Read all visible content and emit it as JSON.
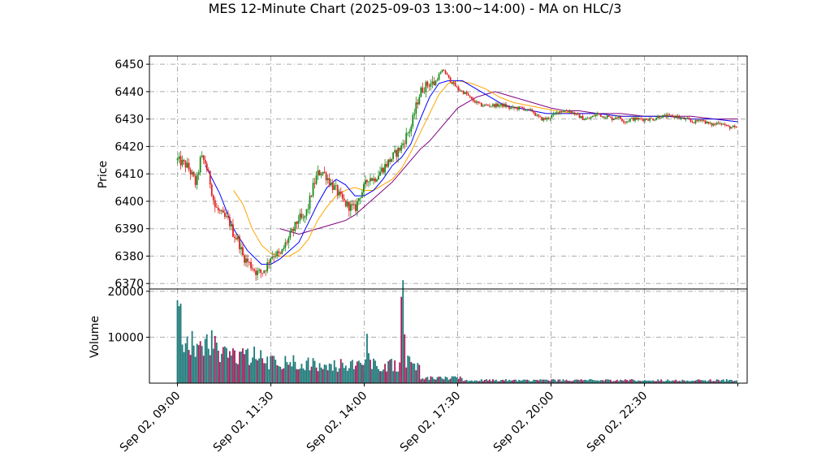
{
  "chart_data": {
    "type": "candlestick",
    "title": "MES 12-Minute Chart (2025-09-03 13:00~14:00) - MA on HLC/3",
    "price_panel": {
      "ylabel": "Price",
      "ylim": [
        6368,
        6453
      ],
      "yticks": [
        6370,
        6380,
        6390,
        6400,
        6410,
        6420,
        6430,
        6440,
        6450
      ],
      "grid": true
    },
    "volume_panel": {
      "ylabel": "Volume",
      "ylim": [
        0,
        20500
      ],
      "yticks": [
        10000,
        20000
      ],
      "grid": true
    },
    "x_axis": {
      "index_range": [
        -6,
        122
      ],
      "ticks": [
        {
          "index": 0,
          "label": "Sep 02, 09:00"
        },
        {
          "index": 20,
          "label": "Sep 02, 11:30"
        },
        {
          "index": 40,
          "label": "Sep 02, 14:00"
        },
        {
          "index": 60,
          "label": "Sep 02, 17:30"
        },
        {
          "index": 80,
          "label": "Sep 02, 20:00"
        },
        {
          "index": 100,
          "label": "Sep 02, 22:30"
        },
        {
          "index": 120,
          "label": ""
        }
      ]
    },
    "colors": {
      "up_candle": "#1a8a1a",
      "down_candle": "#e02020",
      "volume_a": "#1f7a7a",
      "volume_b": "#a0205a",
      "ma_fast": "#0000ff",
      "ma_mid": "#ffa500",
      "ma_slow": "#800080",
      "grid": "#aaaaaa"
    },
    "close_path": [
      [
        0,
        6415
      ],
      [
        1,
        6414
      ],
      [
        2,
        6413
      ],
      [
        3,
        6410
      ],
      [
        4,
        6406
      ],
      [
        5,
        6416
      ],
      [
        6,
        6414
      ],
      [
        7,
        6407
      ],
      [
        8,
        6398
      ],
      [
        9,
        6396
      ],
      [
        10,
        6394
      ],
      [
        11,
        6393
      ],
      [
        12,
        6388
      ],
      [
        13,
        6386
      ],
      [
        14,
        6380
      ],
      [
        15,
        6378
      ],
      [
        16,
        6376
      ],
      [
        17,
        6374
      ],
      [
        18,
        6374
      ],
      [
        19,
        6376
      ],
      [
        20,
        6380
      ],
      [
        21,
        6381
      ],
      [
        22,
        6380
      ],
      [
        23,
        6384
      ],
      [
        24,
        6387
      ],
      [
        25,
        6390
      ],
      [
        26,
        6394
      ],
      [
        27,
        6393
      ],
      [
        28,
        6398
      ],
      [
        29,
        6405
      ],
      [
        30,
        6410
      ],
      [
        31,
        6411
      ],
      [
        32,
        6409
      ],
      [
        33,
        6406
      ],
      [
        34,
        6404
      ],
      [
        35,
        6401
      ],
      [
        36,
        6399
      ],
      [
        37,
        6398
      ],
      [
        38,
        6397
      ],
      [
        39,
        6402
      ],
      [
        40,
        6405
      ],
      [
        41,
        6409
      ],
      [
        42,
        6408
      ],
      [
        43,
        6410
      ],
      [
        44,
        6412
      ],
      [
        45,
        6414
      ],
      [
        46,
        6416
      ],
      [
        47,
        6418
      ],
      [
        48,
        6420
      ],
      [
        49,
        6424
      ],
      [
        50,
        6427
      ],
      [
        51,
        6434
      ],
      [
        52,
        6440
      ],
      [
        53,
        6442
      ],
      [
        54,
        6443
      ],
      [
        55,
        6443
      ],
      [
        56,
        6446
      ],
      [
        57,
        6448
      ],
      [
        58,
        6445
      ],
      [
        59,
        6443
      ],
      [
        60,
        6441
      ],
      [
        61,
        6440
      ],
      [
        62,
        6439
      ],
      [
        63,
        6437
      ],
      [
        64,
        6436
      ],
      [
        65,
        6435
      ],
      [
        66,
        6435
      ],
      [
        67,
        6435
      ],
      [
        68,
        6435
      ],
      [
        69,
        6435
      ],
      [
        70,
        6435
      ],
      [
        71,
        6434
      ],
      [
        72,
        6434
      ],
      [
        73,
        6434
      ],
      [
        74,
        6434
      ],
      [
        75,
        6433
      ],
      [
        76,
        6433
      ],
      [
        77,
        6431
      ],
      [
        78,
        6430
      ],
      [
        79,
        6430
      ],
      [
        80,
        6431
      ],
      [
        81,
        6432
      ],
      [
        82,
        6433
      ],
      [
        83,
        6433
      ],
      [
        84,
        6433
      ],
      [
        85,
        6432
      ],
      [
        86,
        6431
      ],
      [
        87,
        6430
      ],
      [
        88,
        6430
      ],
      [
        89,
        6431
      ],
      [
        90,
        6432
      ],
      [
        91,
        6431
      ],
      [
        92,
        6431
      ],
      [
        93,
        6430
      ],
      [
        94,
        6431
      ],
      [
        95,
        6430
      ],
      [
        96,
        6429
      ],
      [
        97,
        6430
      ],
      [
        98,
        6430
      ],
      [
        99,
        6430
      ],
      [
        100,
        6430
      ],
      [
        101,
        6430
      ],
      [
        102,
        6430
      ],
      [
        103,
        6431
      ],
      [
        104,
        6431
      ],
      [
        105,
        6431
      ],
      [
        106,
        6431
      ],
      [
        107,
        6431
      ],
      [
        108,
        6430
      ],
      [
        109,
        6430
      ],
      [
        110,
        6429
      ],
      [
        111,
        6429
      ],
      [
        112,
        6430
      ],
      [
        113,
        6429
      ],
      [
        114,
        6428
      ],
      [
        115,
        6428
      ],
      [
        116,
        6429
      ],
      [
        117,
        6428
      ],
      [
        118,
        6427
      ],
      [
        119,
        6427
      ],
      [
        120,
        6426
      ]
    ],
    "ma_fast": [
      [
        6,
        6413
      ],
      [
        9,
        6403
      ],
      [
        12,
        6390
      ],
      [
        15,
        6382
      ],
      [
        18,
        6377
      ],
      [
        20,
        6377
      ],
      [
        22,
        6379
      ],
      [
        24,
        6382
      ],
      [
        26,
        6385
      ],
      [
        28,
        6392
      ],
      [
        30,
        6399
      ],
      [
        32,
        6405
      ],
      [
        34,
        6408
      ],
      [
        36,
        6406
      ],
      [
        38,
        6402
      ],
      [
        40,
        6402
      ],
      [
        42,
        6404
      ],
      [
        44,
        6408
      ],
      [
        46,
        6413
      ],
      [
        48,
        6416
      ],
      [
        50,
        6421
      ],
      [
        52,
        6430
      ],
      [
        54,
        6438
      ],
      [
        56,
        6443
      ],
      [
        58,
        6444
      ],
      [
        61,
        6444
      ],
      [
        64,
        6441
      ],
      [
        67,
        6438
      ],
      [
        70,
        6435
      ],
      [
        73,
        6434
      ],
      [
        76,
        6433
      ],
      [
        79,
        6432
      ],
      [
        82,
        6432
      ],
      [
        85,
        6432
      ],
      [
        90,
        6432
      ],
      [
        95,
        6431
      ],
      [
        100,
        6431
      ],
      [
        105,
        6431
      ],
      [
        110,
        6430
      ],
      [
        115,
        6430
      ],
      [
        120,
        6429
      ]
    ],
    "ma_mid": [
      [
        12,
        6404
      ],
      [
        14,
        6399
      ],
      [
        16,
        6390
      ],
      [
        18,
        6384
      ],
      [
        20,
        6381
      ],
      [
        22,
        6380
      ],
      [
        24,
        6380
      ],
      [
        26,
        6382
      ],
      [
        28,
        6386
      ],
      [
        30,
        6393
      ],
      [
        32,
        6398
      ],
      [
        34,
        6402
      ],
      [
        36,
        6404
      ],
      [
        38,
        6405
      ],
      [
        40,
        6404
      ],
      [
        42,
        6404
      ],
      [
        44,
        6406
      ],
      [
        46,
        6408
      ],
      [
        48,
        6412
      ],
      [
        50,
        6418
      ],
      [
        52,
        6425
      ],
      [
        54,
        6432
      ],
      [
        56,
        6439
      ],
      [
        58,
        6443
      ],
      [
        60,
        6444
      ],
      [
        63,
        6443
      ],
      [
        66,
        6441
      ],
      [
        69,
        6438
      ],
      [
        72,
        6436
      ],
      [
        75,
        6435
      ],
      [
        78,
        6434
      ],
      [
        81,
        6433
      ],
      [
        85,
        6432
      ],
      [
        90,
        6432
      ],
      [
        95,
        6431
      ],
      [
        100,
        6431
      ],
      [
        105,
        6431
      ],
      [
        110,
        6430
      ],
      [
        115,
        6430
      ],
      [
        120,
        6429
      ]
    ],
    "ma_slow": [
      [
        22,
        6390
      ],
      [
        24,
        6389
      ],
      [
        26,
        6388
      ],
      [
        28,
        6389
      ],
      [
        30,
        6390
      ],
      [
        32,
        6391
      ],
      [
        34,
        6392
      ],
      [
        36,
        6393
      ],
      [
        38,
        6395
      ],
      [
        40,
        6398
      ],
      [
        42,
        6401
      ],
      [
        44,
        6404
      ],
      [
        46,
        6407
      ],
      [
        48,
        6411
      ],
      [
        50,
        6415
      ],
      [
        52,
        6419
      ],
      [
        54,
        6422
      ],
      [
        56,
        6426
      ],
      [
        58,
        6430
      ],
      [
        60,
        6434
      ],
      [
        62,
        6436
      ],
      [
        64,
        6438
      ],
      [
        66,
        6439
      ],
      [
        68,
        6440
      ],
      [
        70,
        6439
      ],
      [
        72,
        6438
      ],
      [
        74,
        6437
      ],
      [
        76,
        6436
      ],
      [
        78,
        6435
      ],
      [
        80,
        6434
      ],
      [
        83,
        6433
      ],
      [
        86,
        6433
      ],
      [
        90,
        6432
      ],
      [
        95,
        6432
      ],
      [
        100,
        6431
      ],
      [
        105,
        6431
      ],
      [
        110,
        6431
      ],
      [
        115,
        6430
      ],
      [
        120,
        6430
      ]
    ],
    "volume_levels": [
      {
        "range": [
          0,
          0
        ],
        "level": 18000
      },
      {
        "range": [
          1,
          8
        ],
        "level": 10000
      },
      {
        "range": [
          9,
          18
        ],
        "level": 6500
      },
      {
        "range": [
          19,
          28
        ],
        "level": 5000
      },
      {
        "range": [
          29,
          39
        ],
        "level": 4500
      },
      {
        "range": [
          40,
          40
        ],
        "level": 9000
      },
      {
        "range": [
          41,
          47
        ],
        "level": 4500
      },
      {
        "range": [
          48,
          48
        ],
        "level": 18500
      },
      {
        "range": [
          49,
          51
        ],
        "level": 5000
      },
      {
        "range": [
          52,
          60
        ],
        "level": 1200
      },
      {
        "range": [
          61,
          120
        ],
        "level": 700
      }
    ]
  }
}
